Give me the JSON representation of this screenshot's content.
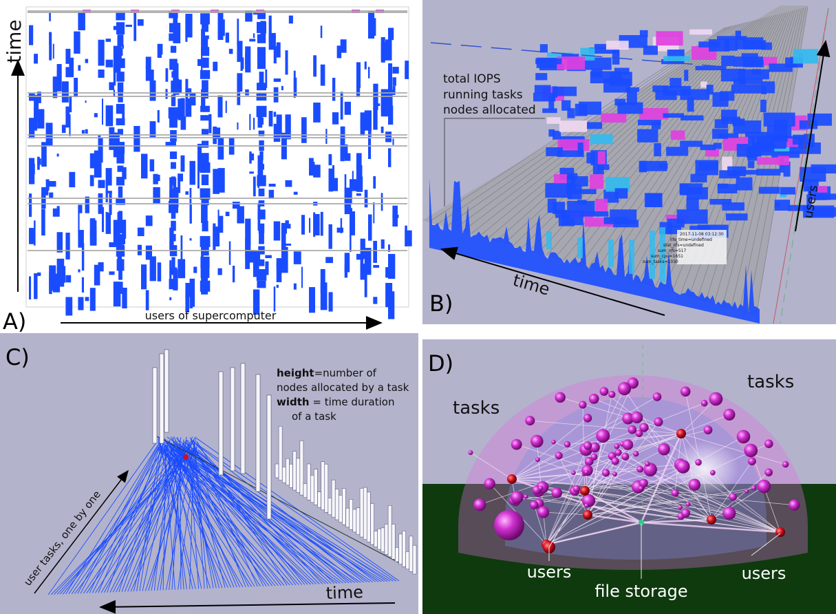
{
  "panel_a": {
    "letter": "A)",
    "y_label": "time",
    "x_label": "users of supercomputer"
  },
  "panel_b": {
    "letter": "B)",
    "legend_lines": [
      "total IOPS",
      "running tasks",
      "nodes allocated"
    ],
    "time_label": "time",
    "users_label": "users",
    "tooltip_lines": [
      "2017-11-08 03:12:30",
      "life_time=undefined",
      "stat_nfs=undefined",
      "sum_nfs=517",
      "sum_cpu=1651",
      "sum_tasks=1030"
    ]
  },
  "panel_c": {
    "letter": "C)",
    "height_term": "height",
    "height_desc": "=number of",
    "height_desc2": "nodes allocated by a task",
    "width_term": "width",
    "width_desc": " = time duration",
    "width_desc2": "of a task",
    "tasks_label": "user tasks, one by one",
    "time_label": "time"
  },
  "panel_d": {
    "letter": "D)",
    "tasks_left": "tasks",
    "tasks_right": "tasks",
    "users_left": "users",
    "users_right": "users",
    "storage_label": "file storage"
  },
  "colors": {
    "bar_blue": "#1a4cff",
    "magenta": "#e040e0",
    "cyan": "#33bbee",
    "panel_bg": "#b3b3cc",
    "ground": "#0e3a0e",
    "user_red": "#d01020"
  }
}
